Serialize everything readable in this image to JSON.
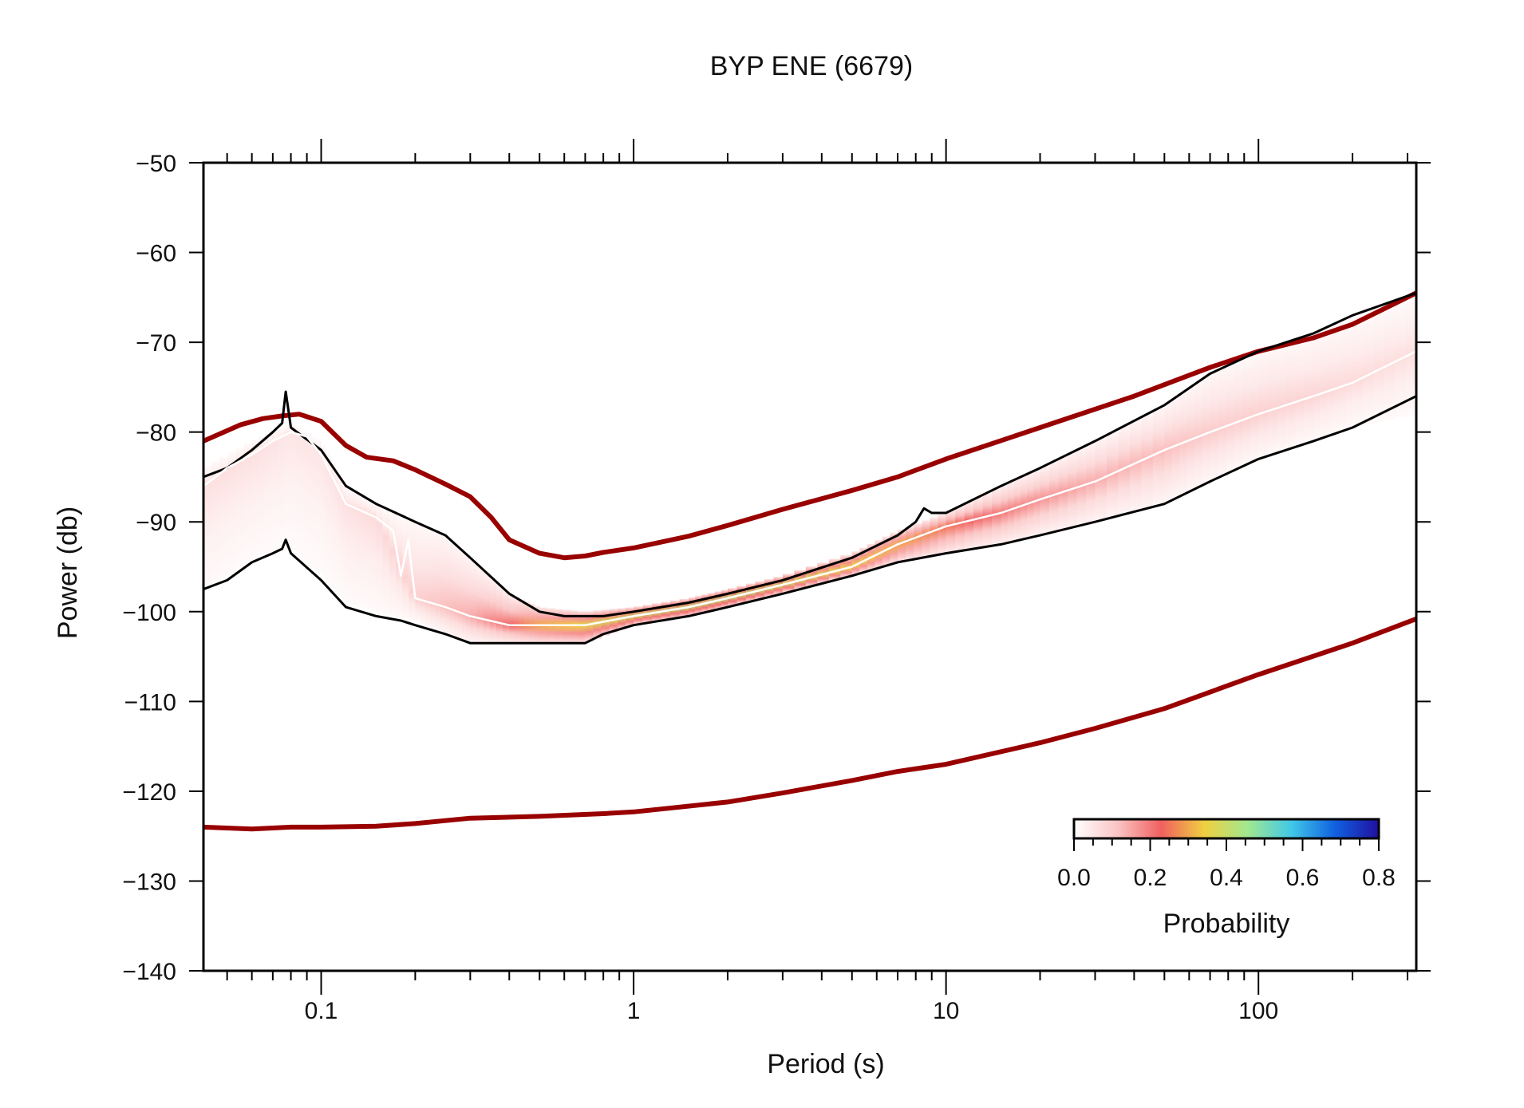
{
  "chart_data": {
    "type": "line",
    "title": "BYP ENE (6679)",
    "xlabel": "Period (s)",
    "ylabel": "Power (db)",
    "x_scale": "log",
    "xlim": [
      0.042,
      320
    ],
    "ylim": [
      -140,
      -50
    ],
    "x_ticks": [
      "0.1",
      "1",
      "10",
      "100"
    ],
    "y_ticks": [
      "-140",
      "-130",
      "-120",
      "-110",
      "-100",
      "-90",
      "-80",
      "-70",
      "-60",
      "-50"
    ],
    "y_tick_labels": [
      "−140",
      "−130",
      "−120",
      "−110",
      "−100",
      "−90",
      "−80",
      "−70",
      "−60",
      "−50"
    ],
    "grid": false,
    "series": [
      {
        "color": "#990000",
        "x": [
          0.042,
          0.055,
          0.065,
          0.075,
          0.085,
          0.1,
          0.12,
          0.14,
          0.17,
          0.2,
          0.25,
          0.3,
          0.35,
          0.4,
          0.5,
          0.6,
          0.7,
          0.8,
          1,
          1.5,
          2,
          3,
          5,
          7,
          10,
          20,
          40,
          70,
          100,
          150,
          200,
          320
        ],
        "y": [
          -81,
          -79.2,
          -78.5,
          -78.2,
          -78,
          -78.8,
          -81.5,
          -82.8,
          -83.2,
          -84.2,
          -85.8,
          -87.2,
          -89.5,
          -92,
          -93.5,
          -94,
          -93.8,
          -93.4,
          -92.9,
          -91.6,
          -90.4,
          -88.6,
          -86.5,
          -85,
          -83,
          -79.5,
          -76,
          -72.8,
          -71,
          -69.5,
          -68,
          -64.5
        ]
      },
      {
        "color": "#990000",
        "x": [
          0.042,
          0.06,
          0.08,
          0.1,
          0.15,
          0.2,
          0.3,
          0.5,
          0.8,
          1,
          2,
          3,
          5,
          7,
          10,
          20,
          30,
          50,
          100,
          200,
          320
        ],
        "y": [
          -124,
          -124.2,
          -124,
          -124,
          -123.9,
          -123.6,
          -123,
          -122.8,
          -122.5,
          -122.3,
          -121.2,
          -120.2,
          -118.8,
          -117.8,
          -117,
          -114.6,
          -113,
          -110.8,
          -107,
          -103.5,
          -100.8
        ]
      },
      {
        "color": "#000000",
        "x": [
          0.042,
          0.05,
          0.06,
          0.07,
          0.075,
          0.077,
          0.08,
          0.1,
          0.12,
          0.15,
          0.2,
          0.25,
          0.3,
          0.4,
          0.5,
          0.6,
          0.8,
          1,
          1.5,
          2,
          3,
          5,
          7,
          8,
          8.5,
          9,
          10,
          15,
          20,
          30,
          50,
          70,
          100,
          150,
          200,
          320
        ],
        "y": [
          -85,
          -84,
          -82,
          -80,
          -79,
          -75.5,
          -79.5,
          -82,
          -86,
          -88,
          -90,
          -91.5,
          -94,
          -98,
          -100,
          -100.5,
          -100.5,
          -100,
          -99,
          -98,
          -96.5,
          -94,
          -91.5,
          -90,
          -88.5,
          -89,
          -89,
          -86,
          -84,
          -81,
          -77,
          -73.5,
          -71,
          -69,
          -67,
          -64.5
        ]
      },
      {
        "color": "#000000",
        "x": [
          0.042,
          0.05,
          0.06,
          0.07,
          0.075,
          0.077,
          0.08,
          0.1,
          0.12,
          0.15,
          0.18,
          0.2,
          0.25,
          0.3,
          0.4,
          0.5,
          0.7,
          0.8,
          1,
          1.5,
          2,
          3,
          5,
          7,
          10,
          15,
          20,
          30,
          50,
          70,
          100,
          150,
          200,
          320
        ],
        "y": [
          -97.5,
          -96.5,
          -94.5,
          -93.5,
          -93,
          -92,
          -93.5,
          -96.5,
          -99.5,
          -100.5,
          -101,
          -101.5,
          -102.5,
          -103.5,
          -103.5,
          -103.5,
          -103.5,
          -102.5,
          -101.5,
          -100.5,
          -99.5,
          -98,
          -96,
          -94.5,
          -93.5,
          -92.5,
          -91.5,
          -90,
          -88,
          -85.5,
          -83,
          -81,
          -79.5,
          -76
        ]
      },
      {
        "color": "#ffffff",
        "x": [
          0.042,
          0.05,
          0.06,
          0.07,
          0.08,
          0.09,
          0.1,
          0.12,
          0.15,
          0.17,
          0.18,
          0.19,
          0.2,
          0.25,
          0.3,
          0.4,
          0.5,
          0.7,
          1,
          1.5,
          2,
          3,
          5,
          7,
          10,
          15,
          20,
          30,
          50,
          70,
          100,
          150,
          200,
          320
        ],
        "y": [
          -86,
          -84,
          -82.5,
          -81,
          -80,
          -80.5,
          -82.5,
          -88,
          -89.5,
          -91,
          -96,
          -92,
          -98.5,
          -99.5,
          -100.5,
          -101.5,
          -101.5,
          -101.5,
          -100.5,
          -99.5,
          -98.5,
          -97,
          -95,
          -92.5,
          -90.5,
          -89,
          -87.5,
          -85.5,
          -82,
          -80,
          -78,
          -76,
          -74.5,
          -71
        ]
      }
    ],
    "pdf_band": {
      "x": [
        0.042,
        0.06,
        0.08,
        0.1,
        0.12,
        0.15,
        0.2,
        0.25,
        0.3,
        0.4,
        0.5,
        0.7,
        1,
        1.5,
        2,
        3,
        5,
        7,
        10,
        15,
        20,
        30,
        50,
        70,
        100,
        150,
        200,
        320
      ],
      "y_low": [
        -98,
        -94,
        -93,
        -96,
        -99,
        -100,
        -101,
        -102.5,
        -103.5,
        -103.5,
        -103.5,
        -103.5,
        -101.5,
        -100.5,
        -99.5,
        -98,
        -96,
        -94.5,
        -93.5,
        -92.5,
        -91.5,
        -90,
        -88,
        -85.5,
        -83,
        -81,
        -79.5,
        -78
      ],
      "y_high": [
        -84,
        -81,
        -79,
        -81,
        -86,
        -88,
        -90,
        -91.5,
        -94,
        -98,
        -99.5,
        -100,
        -99.5,
        -98.5,
        -97.5,
        -96,
        -93.5,
        -91,
        -89,
        -86,
        -84,
        -81,
        -77,
        -73.5,
        -71,
        -69,
        -67,
        -64.5
      ],
      "center": [
        -86,
        -82.5,
        -80,
        -82.5,
        -88,
        -89.5,
        -98.5,
        -99.5,
        -100.5,
        -101.5,
        -101.5,
        -101.5,
        -100.5,
        -99.5,
        -98.5,
        -97,
        -95,
        -92.5,
        -90.5,
        -89,
        -87.5,
        -85.5,
        -82,
        -80,
        -78,
        -76,
        -74.5,
        -71
      ],
      "peak_probability": [
        0.06,
        0.06,
        0.05,
        0.05,
        0.06,
        0.07,
        0.09,
        0.12,
        0.14,
        0.22,
        0.3,
        0.36,
        0.4,
        0.42,
        0.42,
        0.4,
        0.35,
        0.3,
        0.25,
        0.2,
        0.17,
        0.14,
        0.12,
        0.1,
        0.09,
        0.08,
        0.07,
        0.06
      ]
    },
    "colorbar": {
      "label": "Probability",
      "ticks": [
        "0.0",
        "0.2",
        "0.4",
        "0.6",
        "0.8"
      ],
      "range": [
        0,
        0.8
      ],
      "colors": [
        "#ffffff",
        "#fbc4c4",
        "#f06060",
        "#f0d040",
        "#a0e890",
        "#40c8e8",
        "#1060e0",
        "#2010a0"
      ],
      "placement": "bottom-right"
    }
  }
}
